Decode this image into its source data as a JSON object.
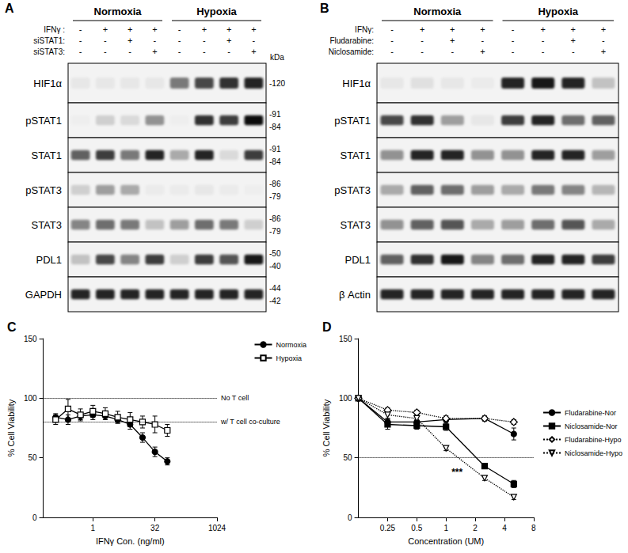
{
  "blots": [
    {
      "panel": "A",
      "groups": [
        "Normoxia",
        "Hypoxia"
      ],
      "conditions": [
        {
          "label": "IFNγ :",
          "signs": [
            "-",
            "+",
            "+",
            "+",
            "-",
            "+",
            "+",
            "+"
          ]
        },
        {
          "label": "siSTAT1:",
          "signs": [
            "-",
            "-",
            "+",
            "-",
            "-",
            "-",
            "+",
            "-"
          ]
        },
        {
          "label": "siSTAT3:",
          "signs": [
            "-",
            "-",
            "-",
            "+",
            "-",
            "-",
            "-",
            "+"
          ]
        }
      ],
      "kda_header": "kDa",
      "rows": [
        {
          "label": "HIF1α",
          "kda": [
            "-120"
          ],
          "intensity": [
            0.05,
            0.05,
            0.05,
            0.05,
            0.5,
            0.7,
            0.8,
            0.85
          ]
        },
        {
          "label": "pSTAT1",
          "kda": [
            "-91",
            "-84"
          ],
          "intensity": [
            0.02,
            0.15,
            0.1,
            0.4,
            0.02,
            0.8,
            0.75,
            0.95
          ]
        },
        {
          "label": "STAT1",
          "kda": [
            "-91",
            "-84"
          ],
          "intensity": [
            0.6,
            0.75,
            0.5,
            0.85,
            0.3,
            0.85,
            0.1,
            0.75
          ]
        },
        {
          "label": "pSTAT3",
          "kda": [
            "-86",
            "-79"
          ],
          "intensity": [
            0.15,
            0.35,
            0.3,
            0.03,
            0.03,
            0.05,
            0.03,
            0.02
          ]
        },
        {
          "label": "STAT3",
          "kda": [
            "-86",
            "-79"
          ],
          "intensity": [
            0.45,
            0.55,
            0.5,
            0.2,
            0.35,
            0.55,
            0.5,
            0.15
          ]
        },
        {
          "label": "PDL1",
          "kda": [
            "-50",
            "-40"
          ],
          "intensity": [
            0.2,
            0.7,
            0.45,
            0.75,
            0.15,
            0.75,
            0.65,
            0.9
          ]
        },
        {
          "label": "GAPDH",
          "kda": [
            "-44",
            "-42"
          ],
          "intensity": [
            0.85,
            0.85,
            0.85,
            0.85,
            0.85,
            0.85,
            0.85,
            0.85
          ]
        }
      ]
    },
    {
      "panel": "B",
      "groups": [
        "Normoxia",
        "Hypoxia"
      ],
      "conditions": [
        {
          "label": "IFNγ:",
          "signs": [
            "-",
            "+",
            "+",
            "+",
            "-",
            "+",
            "+",
            "+"
          ]
        },
        {
          "label": "Fludarabine:",
          "signs": [
            "-",
            "-",
            "+",
            "-",
            "-",
            "-",
            "+",
            "-"
          ]
        },
        {
          "label": "Niclosamide:",
          "signs": [
            "-",
            "-",
            "-",
            "+",
            "-",
            "-",
            "-",
            "+"
          ]
        }
      ],
      "rows": [
        {
          "label": "HIF1α",
          "intensity": [
            0.05,
            0.08,
            0.05,
            0.03,
            0.85,
            0.9,
            0.85,
            0.2
          ]
        },
        {
          "label": "pSTAT1",
          "intensity": [
            0.7,
            0.8,
            0.35,
            0.05,
            0.75,
            0.85,
            0.55,
            0.6
          ]
        },
        {
          "label": "STAT1",
          "intensity": [
            0.4,
            0.85,
            0.85,
            0.4,
            0.4,
            0.85,
            0.85,
            0.35
          ]
        },
        {
          "label": "pSTAT3",
          "intensity": [
            0.3,
            0.6,
            0.55,
            0.35,
            0.3,
            0.5,
            0.45,
            0.25
          ]
        },
        {
          "label": "STAT3",
          "intensity": [
            0.4,
            0.6,
            0.65,
            0.3,
            0.35,
            0.55,
            0.65,
            0.3
          ]
        },
        {
          "label": "PDL1",
          "intensity": [
            0.6,
            0.8,
            0.9,
            0.45,
            0.55,
            0.85,
            0.85,
            0.75
          ]
        },
        {
          "label": "β Actin",
          "intensity": [
            0.85,
            0.85,
            0.85,
            0.85,
            0.85,
            0.85,
            0.85,
            0.85
          ]
        }
      ]
    }
  ],
  "chart_data": [
    {
      "panel": "C",
      "type": "line",
      "x_label": "IFNγ Con. (ng/ml)",
      "y_label": "% Cell Viability",
      "log": "x",
      "x": [
        0.125,
        0.25,
        0.5,
        1,
        2,
        4,
        8,
        16,
        32,
        64
      ],
      "xlim": [
        0.0625,
        1024
      ],
      "xticks": [
        1,
        32,
        1024
      ],
      "ylim": [
        0,
        150
      ],
      "yticks": [
        0,
        50,
        100,
        150
      ],
      "grid": false,
      "legend": "top-right",
      "reference_lines": [
        {
          "value": 100,
          "label": "No T cell"
        },
        {
          "value": 80,
          "label": "w/ T cell co-culture"
        }
      ],
      "series": [
        {
          "name": "Normoxia",
          "color": "#000000",
          "marker": "circle",
          "line_style": "solid",
          "values": [
            84,
            82,
            85,
            86,
            85,
            82,
            78,
            67,
            55,
            47
          ],
          "errors": [
            3,
            4,
            3,
            4,
            3,
            3,
            4,
            4,
            4,
            3
          ]
        },
        {
          "name": "Hypoxia",
          "color": "#000000",
          "marker": "square-open",
          "line_style": "solid",
          "values": [
            82,
            91,
            86,
            89,
            87,
            84,
            82,
            80,
            78,
            73
          ],
          "errors": [
            4,
            8,
            5,
            5,
            5,
            5,
            6,
            5,
            7,
            5
          ]
        }
      ]
    },
    {
      "panel": "D",
      "type": "line",
      "x_label": "Concentration (UM)",
      "y_label": "% Cell Viability",
      "log": "x",
      "x": [
        0.125,
        0.25,
        0.5,
        1,
        2.5,
        5
      ],
      "xlim": [
        0.125,
        8
      ],
      "xticks": [
        0.25,
        0.5,
        1,
        2,
        4,
        8
      ],
      "ylim": [
        0,
        150
      ],
      "yticks": [
        0,
        50,
        100,
        150
      ],
      "grid": false,
      "legend": "right",
      "reference_lines": [
        {
          "value": 50
        }
      ],
      "annotations": [
        {
          "text": "***",
          "x": 1.3,
          "y": 38
        }
      ],
      "series": [
        {
          "name": "Fludarabine-Nor",
          "color": "#000000",
          "marker": "circle",
          "line_style": "solid",
          "values": [
            100,
            80,
            80,
            82,
            83,
            70
          ],
          "errors": [
            0,
            3,
            2,
            3,
            2,
            5
          ]
        },
        {
          "name": "Niclosamide-Nor",
          "color": "#000000",
          "marker": "square",
          "line_style": "solid",
          "values": [
            100,
            78,
            77,
            76,
            43,
            28
          ],
          "errors": [
            0,
            4,
            3,
            3,
            2,
            3
          ]
        },
        {
          "name": "Fludarabine-Hypo",
          "color": "#000000",
          "marker": "diamond-open",
          "line_style": "dotted",
          "values": [
            100,
            90,
            88,
            83,
            83,
            80
          ],
          "errors": [
            0,
            2,
            2,
            2,
            2,
            2
          ]
        },
        {
          "name": "Niclosamide-Hypo",
          "color": "#000000",
          "marker": "triangle-down-open",
          "line_style": "dotted",
          "values": [
            100,
            86,
            83,
            58,
            33,
            17
          ],
          "errors": [
            0,
            3,
            2,
            2,
            2,
            2
          ]
        }
      ]
    }
  ]
}
